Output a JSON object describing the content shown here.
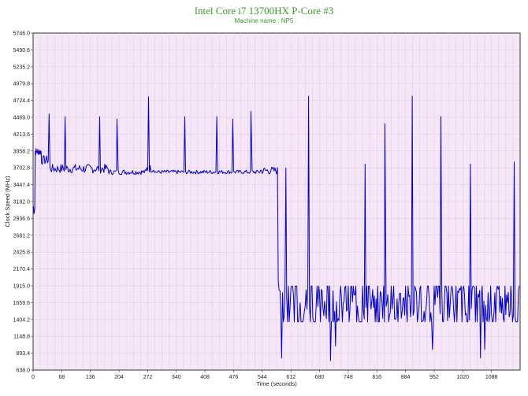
{
  "header": {
    "title": "Intel Core i7 13700HX P-Core #3",
    "subtitle": "Machine name : NP5"
  },
  "chart_data": {
    "type": "line",
    "title": "Intel Core i7 13700HX P-Core #3",
    "subtitle": "Machine name : NP5",
    "xlabel": "Time (seconds)",
    "ylabel": "Clock Speed (MHz)",
    "xlim": [
      0,
      1156
    ],
    "ylim": [
      638.0,
      5746.0
    ],
    "x_ticks": [
      0,
      68,
      136,
      204,
      272,
      340,
      408,
      476,
      544,
      612,
      680,
      748,
      816,
      884,
      952,
      1020,
      1088
    ],
    "y_ticks": [
      638.0,
      893.4,
      1148.8,
      1404.2,
      1659.6,
      1915.0,
      2170.4,
      2425.8,
      2681.2,
      2936.6,
      3192.0,
      3447.4,
      3702.8,
      3958.2,
      4213.6,
      4469.0,
      4724.4,
      4979.8,
      5235.2,
      5490.6,
      5746.0
    ],
    "grid": true,
    "series": [
      {
        "color": "#0000c8",
        "segments": [
          {
            "x_start": 0,
            "x_end": 5,
            "base": 3100,
            "jitter": 120,
            "step": 1
          },
          {
            "x_start": 5,
            "x_end": 20,
            "base": 3950,
            "jitter": 60,
            "step": 1
          },
          {
            "x_start": 20,
            "x_end": 40,
            "base": 3820,
            "jitter": 70,
            "step": 2
          },
          {
            "x_start": 40,
            "x_end": 180,
            "base": 3690,
            "jitter": 70,
            "step": 2
          },
          {
            "x_start": 180,
            "x_end": 270,
            "base": 3640,
            "jitter": 40,
            "step": 2
          },
          {
            "x_start": 270,
            "x_end": 290,
            "base": 3690,
            "jitter": 60,
            "step": 2
          },
          {
            "x_start": 290,
            "x_end": 540,
            "base": 3640,
            "jitter": 30,
            "step": 2
          },
          {
            "x_start": 540,
            "x_end": 582,
            "base": 3660,
            "jitter": 60,
            "step": 2
          },
          {
            "x_start": 582,
            "x_end": 590,
            "base": 2200,
            "jitter": 700,
            "step": 2
          },
          {
            "x_start": 590,
            "x_end": 1156,
            "base": 1640,
            "jitter": 270,
            "step": 2
          }
        ],
        "spikes": [
          {
            "x": 38,
            "y": 4520
          },
          {
            "x": 76,
            "y": 4480
          },
          {
            "x": 158,
            "y": 4480
          },
          {
            "x": 199,
            "y": 4440
          },
          {
            "x": 274,
            "y": 4780
          },
          {
            "x": 360,
            "y": 4480
          },
          {
            "x": 436,
            "y": 4480
          },
          {
            "x": 474,
            "y": 4440
          },
          {
            "x": 517,
            "y": 4560
          },
          {
            "x": 600,
            "y": 3700
          },
          {
            "x": 654,
            "y": 4790
          },
          {
            "x": 718,
            "y": 3800
          },
          {
            "x": 788,
            "y": 3760
          },
          {
            "x": 835,
            "y": 4370
          },
          {
            "x": 900,
            "y": 4790
          },
          {
            "x": 968,
            "y": 4480
          },
          {
            "x": 1038,
            "y": 3760
          },
          {
            "x": 1142,
            "y": 3790
          }
        ],
        "dips": [
          {
            "x": 590,
            "y": 820
          },
          {
            "x": 706,
            "y": 780
          },
          {
            "x": 718,
            "y": 1000
          },
          {
            "x": 948,
            "y": 950
          },
          {
            "x": 1062,
            "y": 820
          },
          {
            "x": 1072,
            "y": 950
          }
        ]
      }
    ]
  }
}
